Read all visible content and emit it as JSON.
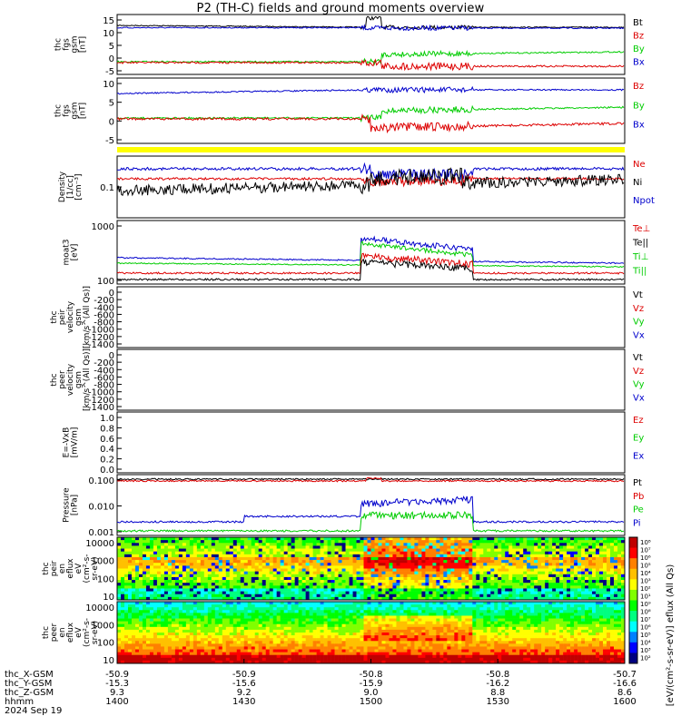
{
  "title": "P2 (TH-C) fields and ground moments overview",
  "colors": {
    "black": "#000000",
    "red": "#dd0000",
    "green": "#00cc00",
    "blue": "#0000cc",
    "yellow": "#ffff00"
  },
  "chart_data": [
    {
      "type": "line",
      "ylabel_lines": [
        "thc",
        "fgs",
        "gsm",
        "[nT]"
      ],
      "yticks": [
        "15",
        "10",
        "5",
        "0",
        "-5"
      ],
      "legend": [
        {
          "name": "Bt",
          "color": "black"
        },
        {
          "name": "Bz",
          "color": "red"
        },
        {
          "name": "By",
          "color": "green"
        },
        {
          "name": "Bx",
          "color": "blue"
        }
      ]
    },
    {
      "type": "line",
      "ylabel_lines": [
        "thc",
        "fgs",
        "gsm",
        "[nT]"
      ],
      "yticks": [
        "10",
        "5",
        "0",
        "-5"
      ],
      "legend": [
        {
          "name": "Bz",
          "color": "red"
        },
        {
          "name": "By",
          "color": "green"
        },
        {
          "name": "Bx",
          "color": "blue"
        }
      ]
    },
    {
      "type": "line",
      "ylabel_lines": [
        "Density",
        "[1/cc]",
        "[cm^-3]"
      ],
      "yticks": [
        "0.1"
      ],
      "legend": [
        {
          "name": "Ne",
          "color": "red"
        },
        {
          "name": "Ni",
          "color": "black"
        },
        {
          "name": "Npot",
          "color": "blue"
        }
      ]
    },
    {
      "type": "line",
      "ylabel_lines": [
        "moat3",
        "[eV]"
      ],
      "yticks": [
        "1000",
        "100"
      ],
      "legend": [
        {
          "name": "Te⊥",
          "color": "red"
        },
        {
          "name": "Te||",
          "color": "black"
        },
        {
          "name": "Ti⊥",
          "color": "green"
        },
        {
          "name": "Ti||",
          "color": "green"
        }
      ]
    },
    {
      "type": "line",
      "ylabel_lines": [
        "thc",
        "peir",
        "velocity",
        "gsm",
        "[km/s^(All Qs)]"
      ],
      "yticks": [
        "0",
        "-200",
        "-400",
        "-600",
        "-800",
        "-1000",
        "-1200",
        "-1400"
      ],
      "legend": [
        {
          "name": "Vt",
          "color": "black"
        },
        {
          "name": "Vz",
          "color": "red"
        },
        {
          "name": "Vy",
          "color": "green"
        },
        {
          "name": "Vx",
          "color": "blue"
        }
      ]
    },
    {
      "type": "line",
      "ylabel_lines": [
        "thc",
        "peer",
        "velocity",
        "gsm",
        "[km/s^(All Qs)]"
      ],
      "yticks": [
        "0",
        "-200",
        "-400",
        "-600",
        "-800",
        "-1000",
        "-1200",
        "-1400"
      ],
      "legend": [
        {
          "name": "Vt",
          "color": "black"
        },
        {
          "name": "Vz",
          "color": "red"
        },
        {
          "name": "Vy",
          "color": "green"
        },
        {
          "name": "Vx",
          "color": "blue"
        }
      ]
    },
    {
      "type": "line",
      "ylabel_lines": [
        "E=-VxB",
        "[mV/m]"
      ],
      "yticks": [
        "1.0",
        "0.8",
        "0.6",
        "0.4",
        "0.2",
        "0.0"
      ],
      "legend": [
        {
          "name": "Ez",
          "color": "red"
        },
        {
          "name": "Ey",
          "color": "green"
        },
        {
          "name": "Ex",
          "color": "blue"
        }
      ]
    },
    {
      "type": "line",
      "ylabel_lines": [
        "Pressure",
        "[nPa]"
      ],
      "yticks": [
        "0.100",
        "0.010",
        "0.001"
      ],
      "legend": [
        {
          "name": "Pt",
          "color": "black"
        },
        {
          "name": "Pb",
          "color": "red"
        },
        {
          "name": "Pe",
          "color": "green"
        },
        {
          "name": "Pi",
          "color": "blue"
        }
      ]
    },
    {
      "type": "heatmap",
      "ylabel_lines": [
        "thc",
        "peir",
        "en",
        "eflux",
        "eV",
        "(cm^2-s-",
        "sr-eV)"
      ],
      "yticks": [
        "10000",
        "1000",
        "100",
        "10"
      ]
    },
    {
      "type": "heatmap",
      "ylabel_lines": [
        "thc",
        "peer",
        "en",
        "eflux",
        "eV",
        "(cm^2-s-",
        "sr-eV)"
      ],
      "yticks": [
        "10000",
        "1000",
        "100",
        "10"
      ]
    }
  ],
  "colorbar": {
    "ticks_upper": [
      "10^8",
      "10^7",
      "10^6",
      "10^5",
      "10^4",
      "10^3",
      "10^2",
      "10^1"
    ],
    "ticks_lower": [
      "10^9",
      "10^8",
      "10^7",
      "10^6",
      "10^5",
      "10^4",
      "10^3",
      "10^2"
    ],
    "label": "[eV/(cm^2-s-sr-eV)] eflux (All Qs)"
  },
  "x_axis": {
    "row_labels": [
      "thc_X-GSM",
      "thc_Y-GSM",
      "thc_Z-GSM",
      "hhmm",
      "2024 Sep 19"
    ],
    "ticks": [
      {
        "X": "-50.9",
        "Y": "-15.3",
        "Z": "9.3",
        "hhmm": "1400"
      },
      {
        "X": "-50.9",
        "Y": "-15.6",
        "Z": "9.2",
        "hhmm": "1430"
      },
      {
        "X": "-50.8",
        "Y": "-15.9",
        "Z": "9.0",
        "hhmm": "1500"
      },
      {
        "X": "-50.8",
        "Y": "-16.2",
        "Z": "8.8",
        "hhmm": "1530"
      },
      {
        "X": "-50.7",
        "Y": "-16.6",
        "Z": "8.6",
        "hhmm": "1600"
      }
    ]
  }
}
